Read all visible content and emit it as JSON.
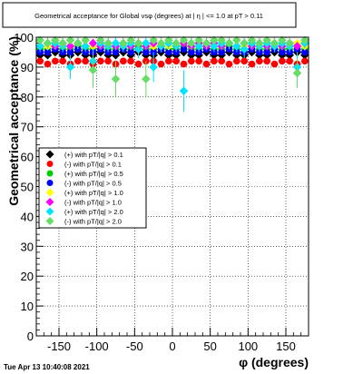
{
  "title": "Geometrical acceptance for Global vsφ (degrees) at | η | <= 1.0 at pT > 0.11",
  "footer": "Tue Apr 13 10:40:08 2021",
  "chart_data": {
    "type": "scatter",
    "title": "Geometrical acceptance for Global vsφ (degrees) at | η | <= 1.0 at pT > 0.11",
    "xlabel": "φ (degrees)",
    "ylabel": "Geometrical acceptance (%)",
    "xlim": [
      -180,
      180
    ],
    "ylim": [
      0,
      100
    ],
    "xticks": [
      -150,
      -100,
      -50,
      0,
      50,
      100,
      150
    ],
    "yticks": [
      0,
      10,
      20,
      30,
      40,
      50,
      60,
      70,
      80,
      90,
      100
    ],
    "grid": true,
    "legend_position": "middle-left",
    "series": [
      {
        "name": "(+) with pT/|q| > 0.1",
        "color": "#000000",
        "marker": "diamond",
        "x": [
          -175,
          -165,
          -155,
          -145,
          -135,
          -125,
          -115,
          -105,
          -95,
          -85,
          -75,
          -65,
          -55,
          -45,
          -35,
          -25,
          -15,
          -5,
          5,
          15,
          25,
          35,
          45,
          55,
          65,
          75,
          85,
          95,
          105,
          115,
          125,
          135,
          145,
          155,
          165,
          175
        ],
        "y": [
          94,
          94,
          95,
          94,
          94,
          95,
          94,
          94,
          95,
          94,
          94,
          95,
          94,
          95,
          94,
          94,
          95,
          94,
          94,
          95,
          94,
          94,
          95,
          94,
          94,
          95,
          94,
          94,
          95,
          94,
          94,
          95,
          94,
          94,
          95,
          94
        ]
      },
      {
        "name": "(-) with pT/|q| > 0.1",
        "color": "#ff0000",
        "marker": "circle",
        "x": [
          -175,
          -165,
          -155,
          -145,
          -135,
          -125,
          -115,
          -105,
          -95,
          -85,
          -75,
          -65,
          -55,
          -45,
          -35,
          -25,
          -15,
          -5,
          5,
          15,
          25,
          35,
          45,
          55,
          65,
          75,
          85,
          95,
          105,
          115,
          125,
          135,
          145,
          155,
          165,
          175
        ],
        "y": [
          92,
          91,
          92,
          92,
          91,
          92,
          92,
          91,
          92,
          92,
          91,
          92,
          92,
          91,
          92,
          92,
          91,
          92,
          92,
          91,
          92,
          92,
          91,
          92,
          92,
          91,
          92,
          92,
          91,
          92,
          92,
          91,
          92,
          92,
          91,
          92
        ]
      },
      {
        "name": "(+) with pT/|q| > 0.5",
        "color": "#00cc00",
        "marker": "circle",
        "x": [
          -175,
          -165,
          -155,
          -145,
          -135,
          -125,
          -115,
          -105,
          -95,
          -85,
          -75,
          -65,
          -55,
          -45,
          -35,
          -25,
          -15,
          -5,
          5,
          15,
          25,
          35,
          45,
          55,
          65,
          75,
          85,
          95,
          105,
          115,
          125,
          135,
          145,
          155,
          165,
          175
        ],
        "y": [
          96,
          96,
          97,
          96,
          96,
          97,
          96,
          96,
          97,
          96,
          96,
          97,
          96,
          97,
          96,
          96,
          97,
          96,
          96,
          97,
          96,
          96,
          97,
          96,
          96,
          97,
          96,
          96,
          97,
          96,
          96,
          97,
          96,
          96,
          97,
          96
        ]
      },
      {
        "name": "(-) with pT/|q| > 0.5",
        "color": "#0000ff",
        "marker": "circle",
        "x": [
          -175,
          -165,
          -155,
          -145,
          -135,
          -125,
          -115,
          -105,
          -95,
          -85,
          -75,
          -65,
          -55,
          -45,
          -35,
          -25,
          -15,
          -5,
          5,
          15,
          25,
          35,
          45,
          55,
          65,
          75,
          85,
          95,
          105,
          115,
          125,
          135,
          145,
          155,
          165,
          175
        ],
        "y": [
          95,
          95,
          96,
          95,
          95,
          96,
          95,
          95,
          96,
          95,
          95,
          96,
          95,
          96,
          95,
          95,
          96,
          95,
          95,
          96,
          95,
          95,
          96,
          95,
          95,
          96,
          95,
          95,
          96,
          95,
          95,
          96,
          95,
          95,
          96,
          95
        ]
      },
      {
        "name": "(+) with pT/|q| > 1.0",
        "color": "#ffff00",
        "marker": "diamond",
        "x": [
          -175,
          -165,
          -155,
          -145,
          -135,
          -125,
          -115,
          -105,
          -95,
          -85,
          -75,
          -65,
          -55,
          -45,
          -35,
          -25,
          -15,
          -5,
          5,
          15,
          25,
          35,
          45,
          55,
          65,
          75,
          85,
          95,
          105,
          115,
          125,
          135,
          145,
          155,
          165,
          175
        ],
        "y": [
          97,
          97,
          98,
          97,
          97,
          98,
          97,
          97,
          98,
          97,
          97,
          98,
          97,
          98,
          97,
          97,
          98,
          97,
          97,
          98,
          97,
          97,
          98,
          97,
          97,
          98,
          97,
          97,
          98,
          97,
          97,
          98,
          97,
          97,
          98,
          97
        ]
      },
      {
        "name": "(-) with pT/|q| > 1.0",
        "color": "#ff00ff",
        "marker": "diamond",
        "x": [
          -175,
          -165,
          -155,
          -145,
          -135,
          -125,
          -115,
          -105,
          -95,
          -85,
          -75,
          -65,
          -55,
          -45,
          -35,
          -25,
          -15,
          -5,
          5,
          15,
          25,
          35,
          45,
          55,
          65,
          75,
          85,
          95,
          105,
          115,
          125,
          135,
          145,
          155,
          165,
          175
        ],
        "y": [
          97,
          98,
          97,
          98,
          97,
          98,
          97,
          98,
          97,
          98,
          97,
          98,
          97,
          98,
          97,
          98,
          97,
          98,
          97,
          98,
          97,
          98,
          97,
          98,
          97,
          98,
          97,
          98,
          97,
          98,
          97,
          98,
          97,
          98,
          97,
          98
        ]
      },
      {
        "name": "(+) with pT/|q| > 2.0",
        "color": "#00e5ff",
        "marker": "diamond",
        "x": [
          -175,
          -165,
          -155,
          -145,
          -135,
          -125,
          -115,
          -105,
          -95,
          -85,
          -75,
          -65,
          -55,
          -45,
          -35,
          -25,
          -15,
          -5,
          5,
          15,
          25,
          35,
          45,
          55,
          65,
          75,
          85,
          95,
          105,
          115,
          125,
          135,
          145,
          155,
          165,
          175
        ],
        "y": [
          97,
          98,
          98,
          97,
          90,
          98,
          97,
          92,
          98,
          97,
          98,
          97,
          98,
          96,
          98,
          90,
          97,
          98,
          97,
          82,
          98,
          97,
          98,
          97,
          98,
          98,
          97,
          96,
          98,
          97,
          98,
          97,
          98,
          97,
          90,
          98
        ],
        "err": [
          2,
          2,
          2,
          2,
          4,
          2,
          2,
          4,
          2,
          2,
          2,
          2,
          2,
          3,
          2,
          5,
          2,
          2,
          2,
          7,
          2,
          2,
          2,
          2,
          2,
          2,
          2,
          3,
          2,
          2,
          2,
          2,
          2,
          2,
          5,
          2
        ]
      },
      {
        "name": "(-) with pT/|q| > 2.0",
        "color": "#66dd66",
        "marker": "diamond",
        "x": [
          -175,
          -165,
          -155,
          -145,
          -135,
          -125,
          -115,
          -105,
          -95,
          -85,
          -75,
          -65,
          -55,
          -45,
          -35,
          -25,
          -15,
          -5,
          5,
          15,
          25,
          35,
          45,
          55,
          65,
          75,
          85,
          95,
          105,
          115,
          125,
          135,
          145,
          155,
          165,
          175
        ],
        "y": [
          99,
          98,
          99,
          98,
          99,
          98,
          99,
          89,
          99,
          98,
          86,
          98,
          99,
          98,
          86,
          99,
          98,
          99,
          98,
          99,
          98,
          99,
          98,
          99,
          99,
          98,
          99,
          98,
          99,
          98,
          99,
          98,
          99,
          98,
          88,
          99
        ],
        "err": [
          1,
          2,
          1,
          2,
          1,
          2,
          1,
          6,
          1,
          2,
          6,
          2,
          1,
          2,
          6,
          1,
          2,
          1,
          2,
          1,
          2,
          1,
          2,
          1,
          1,
          2,
          1,
          2,
          1,
          2,
          1,
          2,
          1,
          2,
          5,
          1
        ]
      }
    ]
  }
}
